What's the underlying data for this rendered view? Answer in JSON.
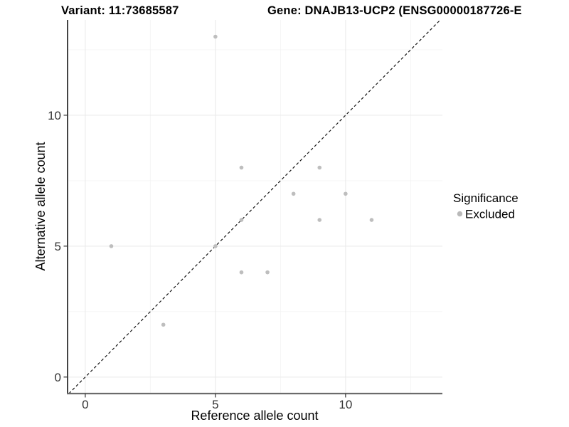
{
  "header": {
    "variant_title": "Variant: 11:73685587",
    "gene_title": "Gene: DNAJB13-UCP2 (ENSG00000187726-E"
  },
  "chart_data": {
    "type": "scatter",
    "title": "Variant: 11:73685587 — Gene: DNAJB13-UCP2 (ENSG00000187726-E",
    "xlabel": "Reference allele count",
    "ylabel": "Alternative allele count",
    "xlim": [
      -0.68,
      13.72
    ],
    "ylim": [
      -0.63,
      13.64
    ],
    "x_ticks": [
      0,
      5,
      10
    ],
    "y_ticks": [
      0,
      5,
      10
    ],
    "x_minor_ticks": [
      2.5,
      7.5,
      12.5
    ],
    "y_minor_ticks": [
      2.5,
      7.5,
      12.5
    ],
    "grid": true,
    "identity_line": {
      "slope": 1,
      "intercept": 0,
      "style": "dashed",
      "color": "#151515"
    },
    "series": [
      {
        "name": "Excluded",
        "color": "#bebebe",
        "points": [
          [
            1,
            5
          ],
          [
            3,
            2
          ],
          [
            5,
            5
          ],
          [
            5,
            13
          ],
          [
            6,
            4
          ],
          [
            6,
            6
          ],
          [
            6,
            8
          ],
          [
            7,
            4
          ],
          [
            8,
            7
          ],
          [
            9,
            6
          ],
          [
            9,
            8
          ],
          [
            10,
            7
          ],
          [
            11,
            6
          ]
        ]
      }
    ],
    "legend": {
      "title": "Significance",
      "position": "right",
      "entries": [
        {
          "label": "Excluded",
          "color": "#b9b9b9"
        }
      ]
    }
  }
}
